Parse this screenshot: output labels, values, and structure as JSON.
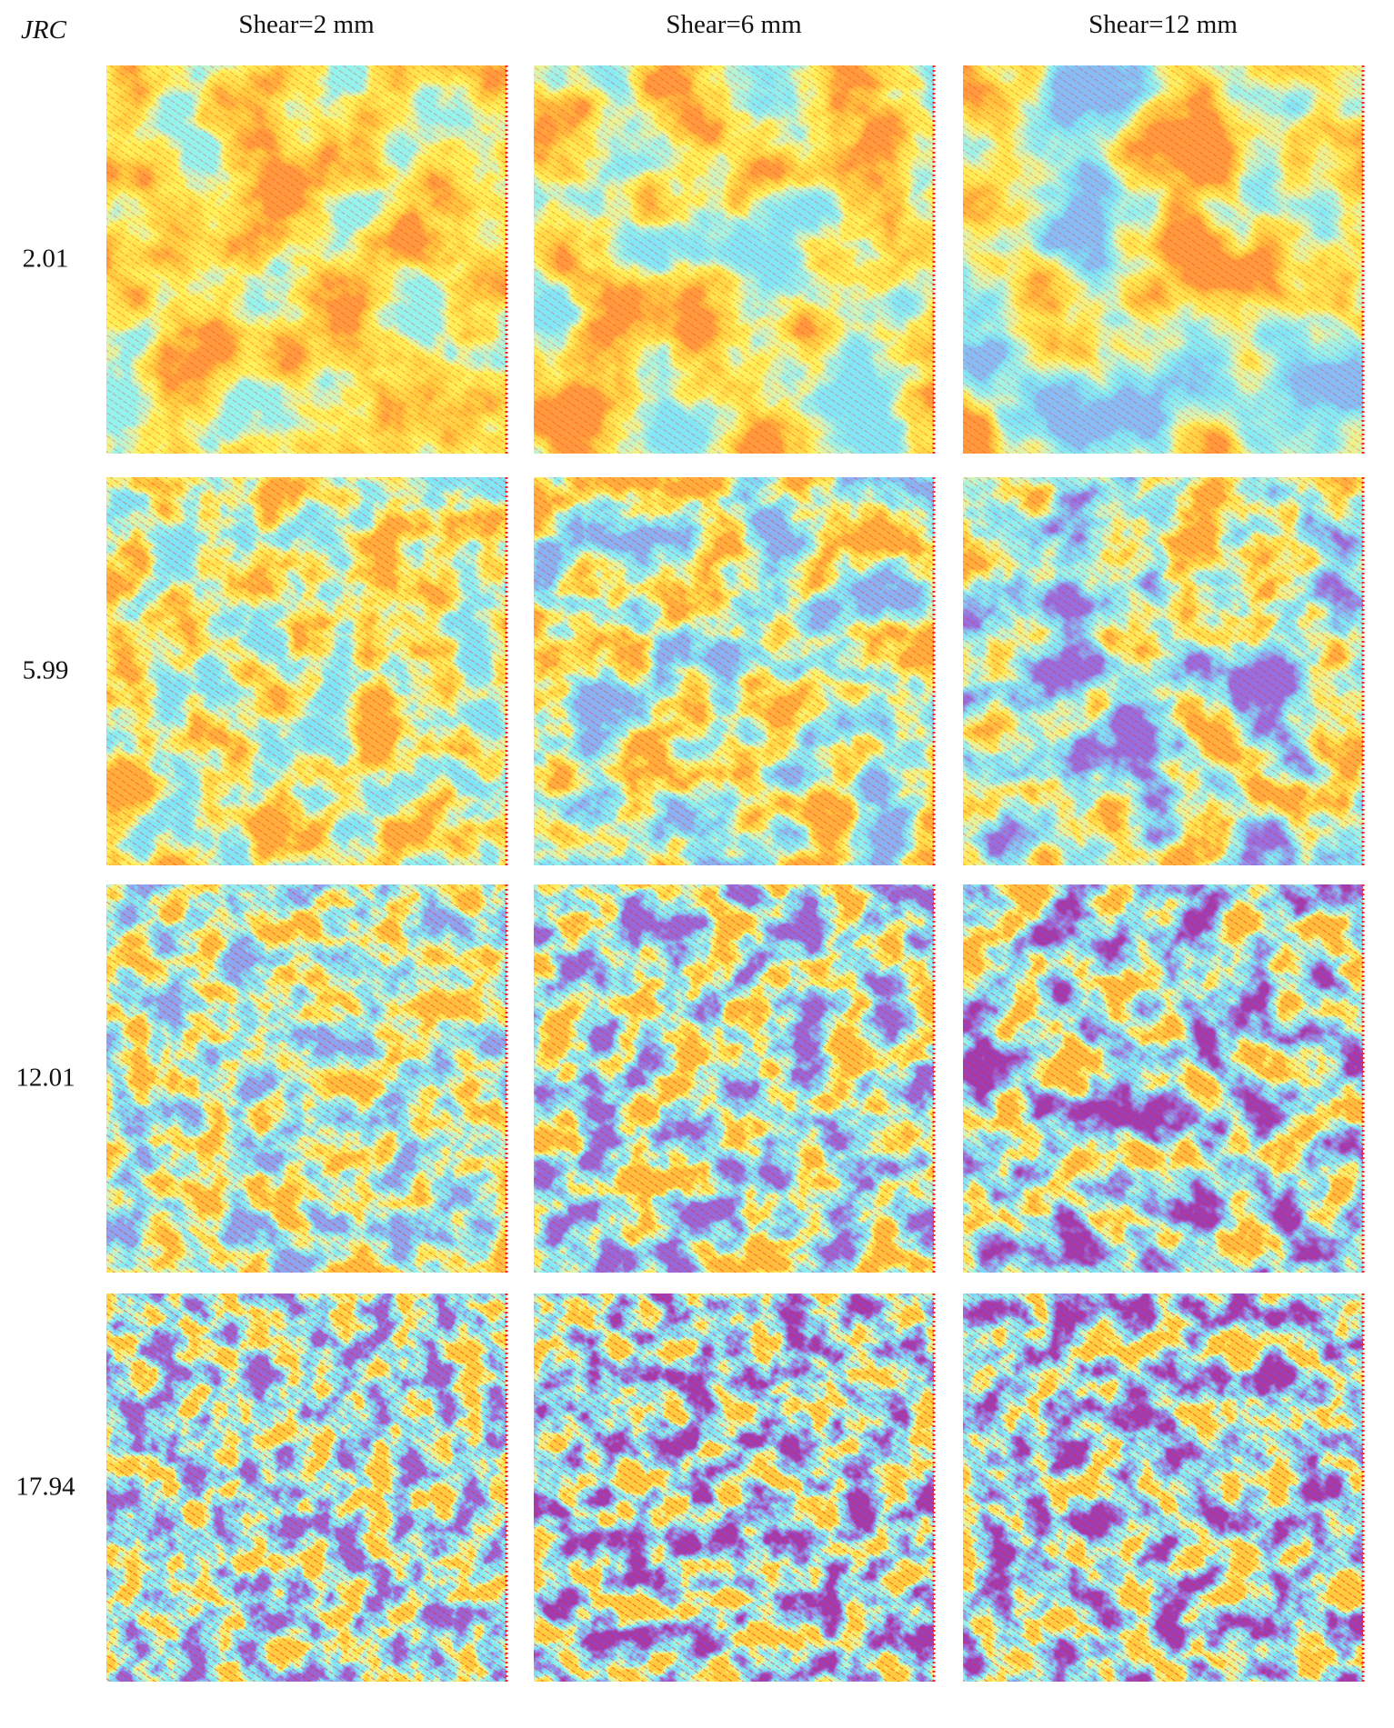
{
  "header": {
    "row_title": "JRC",
    "columns": [
      "Shear=2 mm",
      "Shear=6 mm",
      "Shear=12 mm"
    ]
  },
  "rows": [
    {
      "label": "2.01"
    },
    {
      "label": "5.99"
    },
    {
      "label": "12.01"
    },
    {
      "label": "17.94"
    }
  ]
}
